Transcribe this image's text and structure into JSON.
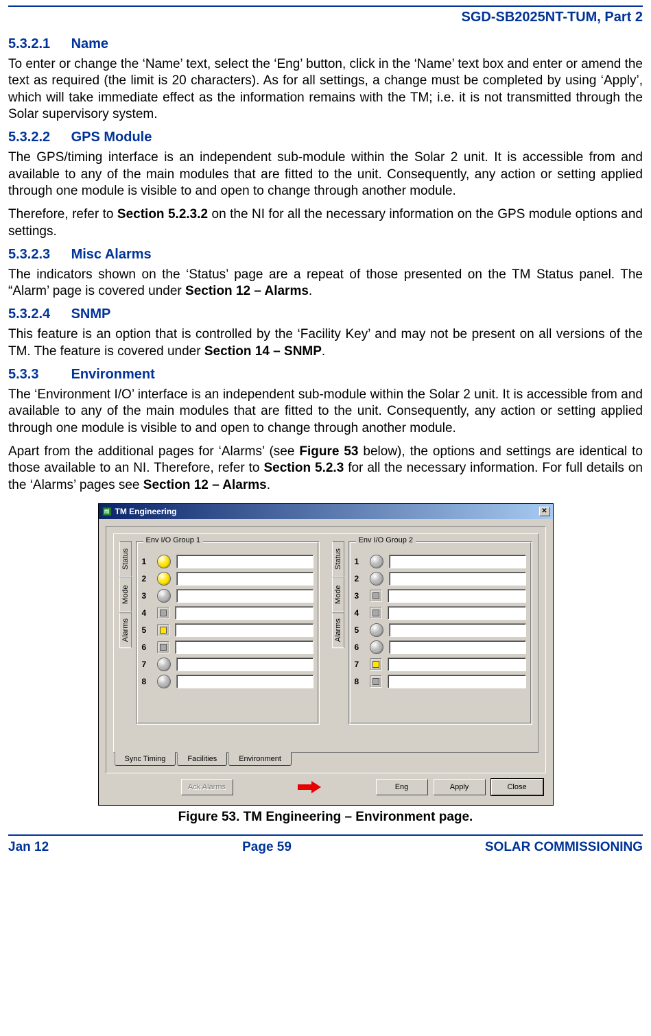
{
  "doc_header": "SGD-SB2025NT-TUM, Part 2",
  "sections": {
    "s1": {
      "num": "5.3.2.1",
      "title": "Name"
    },
    "s2": {
      "num": "5.3.2.2",
      "title": "GPS Module"
    },
    "s3": {
      "num": "5.3.2.3",
      "title": "Misc Alarms"
    },
    "s4": {
      "num": "5.3.2.4",
      "title": "SNMP"
    },
    "s5": {
      "num": "5.3.3",
      "title": "Environment"
    }
  },
  "paras": {
    "p1": "To enter or change the ‘Name’ text, select the ‘Eng’ button, click in the ‘Name’ text box and enter or amend the text as required (the limit is 20 characters).  As for all settings, a change must be completed by using ‘Apply’, which will take immediate effect as the information remains with the TM; i.e. it is not transmitted through the Solar supervisory system.",
    "p2": "The GPS/timing interface is an independent sub-module within the Solar 2 unit.  It is accessible from and available to any of the main modules that are fitted to the unit.  Consequently, any action or setting applied through one module is visible to and open to change through another module.",
    "p3a": "Therefore, refer to ",
    "p3b": "Section 5.2.3.2",
    "p3c": " on the NI for all the necessary information on the GPS module options and settings.",
    "p4a": "The indicators shown on the ‘Status’ page are a repeat of those presented on the TM Status panel. The “Alarm’ page is covered under ",
    "p4b": "Section 12 – Alarms",
    "p4c": ".",
    "p5a": "This feature is an option that is controlled by the ‘Facility Key’ and may not be present on all versions of the TM.  The feature is covered under ",
    "p5b": "Section 14 – SNMP",
    "p5c": ".",
    "p6": "The ‘Environment I/O’ interface is an independent sub-module within the Solar 2 unit.  It is accessible from and available to any of the main modules that are fitted to the unit.  Consequently, any action or setting applied through one module is visible to and open to change through another module.",
    "p7a": "Apart from the additional pages for ‘Alarms’ (see ",
    "p7b": "Figure 53",
    "p7c": " below), the options and settings are identical to those available to an NI.  Therefore, refer to ",
    "p7d": "Section 5.2.3",
    "p7e": " for all the necessary information.  For full details on the ‘Alarms’ pages see ",
    "p7f": "Section 12 – Alarms",
    "p7g": "."
  },
  "window": {
    "title": "TM Engineering",
    "vtabs": [
      "Status",
      "Mode",
      "Alarms"
    ],
    "group1": {
      "legend": "Env I/O Group 1",
      "rows": [
        {
          "n": "1",
          "shape": "circle",
          "color": "#ffe600"
        },
        {
          "n": "2",
          "shape": "circle",
          "color": "#ffe600"
        },
        {
          "n": "3",
          "shape": "circle",
          "color": "#b8b8b8"
        },
        {
          "n": "4",
          "shape": "square",
          "color": "#a8a8a8"
        },
        {
          "n": "5",
          "shape": "square",
          "color": "#ffe600"
        },
        {
          "n": "6",
          "shape": "square",
          "color": "#a8a8a8"
        },
        {
          "n": "7",
          "shape": "circle",
          "color": "#b8b8b8"
        },
        {
          "n": "8",
          "shape": "circle",
          "color": "#b8b8b8"
        }
      ]
    },
    "group2": {
      "legend": "Env I/O Group 2",
      "rows": [
        {
          "n": "1",
          "shape": "circle",
          "color": "#b8b8b8"
        },
        {
          "n": "2",
          "shape": "circle",
          "color": "#b8b8b8"
        },
        {
          "n": "3",
          "shape": "square",
          "color": "#a8a8a8"
        },
        {
          "n": "4",
          "shape": "square",
          "color": "#a8a8a8"
        },
        {
          "n": "5",
          "shape": "circle",
          "color": "#b8b8b8"
        },
        {
          "n": "6",
          "shape": "circle",
          "color": "#b8b8b8"
        },
        {
          "n": "7",
          "shape": "square",
          "color": "#ffe600"
        },
        {
          "n": "8",
          "shape": "square",
          "color": "#a8a8a8"
        }
      ]
    },
    "bottom_tabs": [
      "Sync Timing",
      "Facilities",
      "Environment"
    ],
    "buttons": {
      "ack": "Ack Alarms",
      "eng": "Eng",
      "apply": "Apply",
      "close": "Close"
    }
  },
  "figure_caption": "Figure 53.  TM Engineering – Environment page.",
  "footer": {
    "left": "Jan 12",
    "mid": "Page 59",
    "right": "SOLAR COMMISSIONING"
  }
}
